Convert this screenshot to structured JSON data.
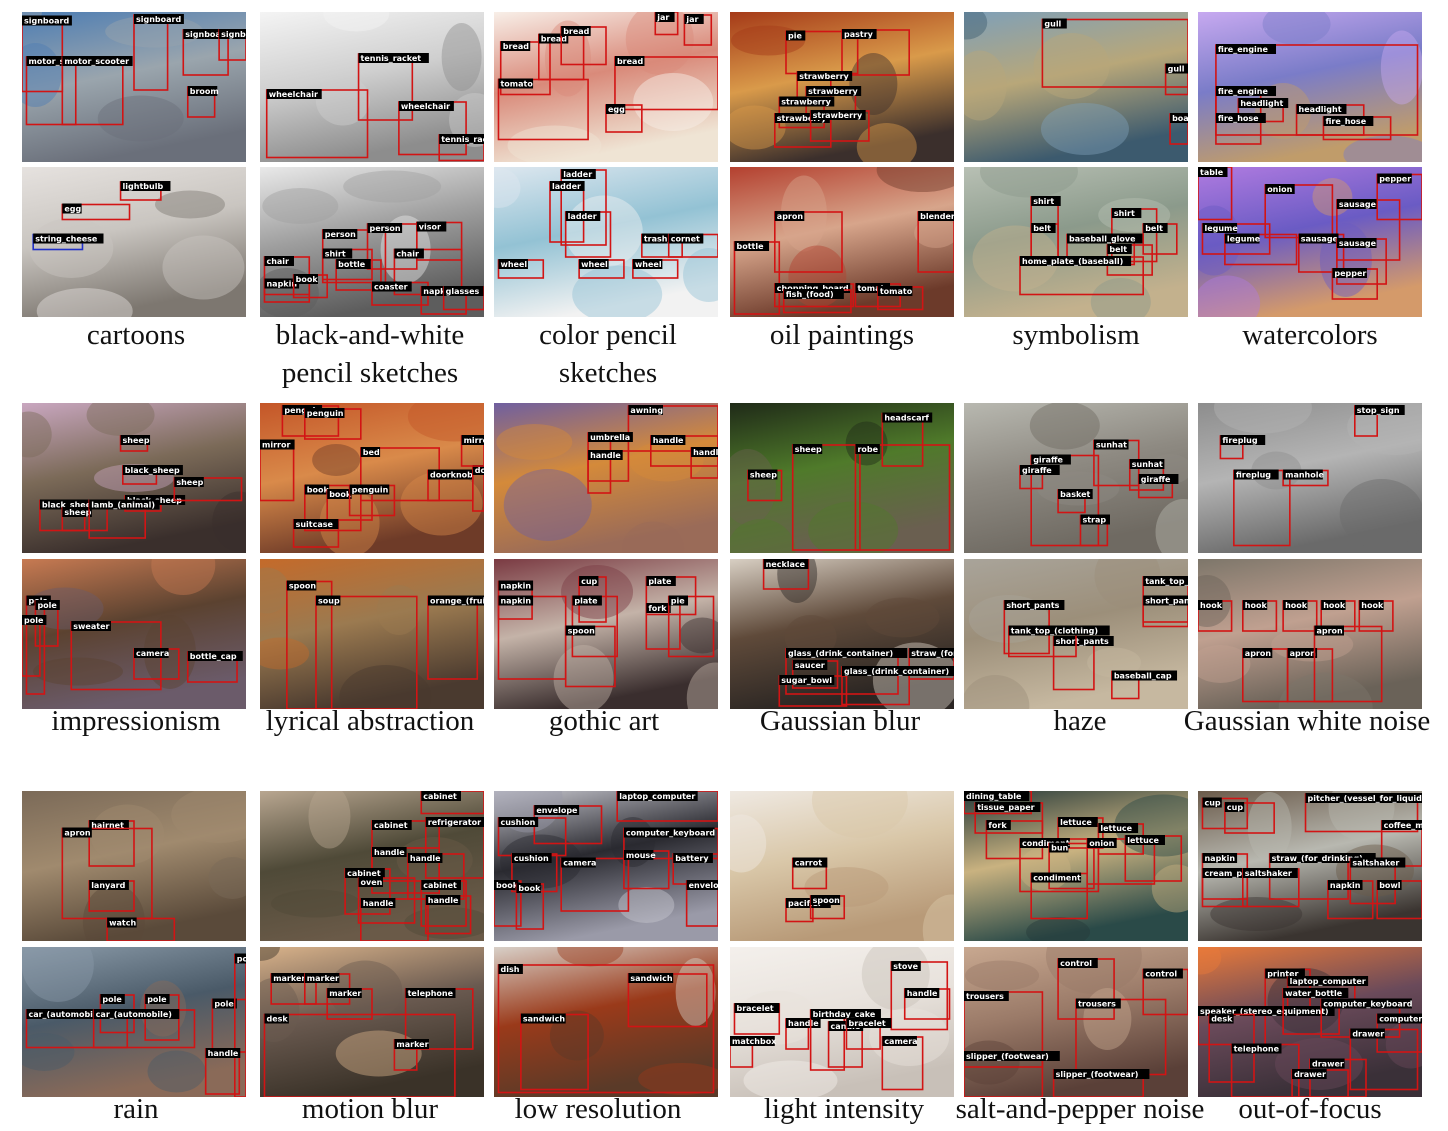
{
  "accent": "#d21414",
  "captions": {
    "r1": [
      "cartoons",
      "black-and-white pencil sketches",
      "color pencil sketches",
      "oil paintings",
      "symbolism",
      "watercolors"
    ],
    "r2": [
      "impressionism",
      "lyrical abstraction",
      "gothic art",
      "Gaussian blur",
      "haze",
      "Gaussian white noise"
    ],
    "r3": [
      "rain",
      "motion blur",
      "low resolution",
      "light intensity",
      "salt-and-pepper noise",
      "out-of-focus"
    ]
  },
  "caption_lines": {
    "bw1": "black-and-white",
    "bw2": "pencil sketches",
    "cp1": "color pencil",
    "cp2": "sketches"
  },
  "tiles": [
    {
      "id": "t0",
      "labels": [
        "signboard",
        "signboard",
        "signboard",
        "motor_scooter",
        "motor_scooter",
        "broom",
        "signboard"
      ]
    },
    {
      "id": "t1",
      "labels": [
        "tennis_racket",
        "wheelchair",
        "wheelchair",
        "tennis_racket"
      ]
    },
    {
      "id": "t2",
      "labels": [
        "bread",
        "bread",
        "bread",
        "jar",
        "jar",
        "tomato",
        "bread",
        "egg"
      ]
    },
    {
      "id": "t3",
      "labels": [
        "pie",
        "pastry",
        "strawberry",
        "strawberry",
        "strawberry",
        "strawberry",
        "strawberry"
      ]
    },
    {
      "id": "t4",
      "labels": [
        "gull",
        "gull",
        "boat"
      ]
    },
    {
      "id": "t5",
      "labels": [
        "fire_engine",
        "fire_engine",
        "headlight",
        "fire_hose",
        "headlight",
        "fire_hose"
      ]
    },
    {
      "id": "t6",
      "labels": [
        "lightbulb",
        "egg",
        "string_cheese"
      ]
    },
    {
      "id": "t7",
      "labels": [
        "person",
        "person",
        "visor",
        "shirt",
        "bottle",
        "chair",
        "chair",
        "napkin",
        "coaster",
        "napkin",
        "glasses",
        "book"
      ]
    },
    {
      "id": "t8",
      "labels": [
        "ladder",
        "ladder",
        "ladder",
        "trash_can",
        "cornet",
        "wheel",
        "wheel",
        "wheel"
      ]
    },
    {
      "id": "t9",
      "labels": [
        "apron",
        "blender",
        "bottle",
        "chopping_board",
        "fish_(food)",
        "tomato",
        "tomato"
      ]
    },
    {
      "id": "t10",
      "labels": [
        "shirt",
        "belt",
        "shirt",
        "belt",
        "baseball_glove",
        "belt",
        "home_plate_(baseball)"
      ]
    },
    {
      "id": "t11",
      "labels": [
        "table",
        "pepper",
        "onion",
        "sausage",
        "legume",
        "legume",
        "sausage",
        "sausage",
        "pepper"
      ]
    },
    {
      "id": "t12",
      "labels": [
        "sheep",
        "black_sheep",
        "black_sheep",
        "sheep",
        "black_sheep",
        "sheep",
        "lamb_(animal)"
      ]
    },
    {
      "id": "t13",
      "labels": [
        "penguin",
        "penguin",
        "mirror",
        "bed",
        "doorknob",
        "doorknob",
        "book",
        "book",
        "penguin",
        "suitcase",
        "mirror"
      ]
    },
    {
      "id": "t14",
      "labels": [
        "awning",
        "umbrella",
        "handle",
        "handle",
        "handle"
      ]
    },
    {
      "id": "t15",
      "labels": [
        "headscarf",
        "sheep",
        "robe",
        "sheep"
      ]
    },
    {
      "id": "t16",
      "labels": [
        "giraffe",
        "sunhat",
        "giraffe",
        "sunhat",
        "giraffe",
        "basket",
        "strap"
      ]
    },
    {
      "id": "t17",
      "labels": [
        "stop_sign",
        "fireplug",
        "fireplug",
        "manhole"
      ]
    },
    {
      "id": "t18",
      "labels": [
        "pole",
        "pole",
        "pole",
        "sweater",
        "camera",
        "bottle_cap"
      ]
    },
    {
      "id": "t19",
      "labels": [
        "spoon",
        "soup",
        "orange_(fruit)"
      ]
    },
    {
      "id": "t20",
      "labels": [
        "napkin",
        "cup",
        "plate",
        "plate",
        "fork",
        "pie",
        "napkin",
        "spoon"
      ]
    },
    {
      "id": "t21",
      "labels": [
        "necklace",
        "glass_(drink_container)",
        "saucer",
        "straw_(for_drinking)",
        "sugar_bowl",
        "glass_(drink_container)"
      ]
    },
    {
      "id": "t22",
      "labels": [
        "tank_top_(clothing)",
        "short_pants",
        "short_pants",
        "tank_top_(clothing)",
        "short_pants",
        "baseball_cap"
      ]
    },
    {
      "id": "t23",
      "labels": [
        "hook",
        "hook",
        "hook",
        "hook",
        "hook",
        "apron",
        "apron",
        "apron"
      ]
    },
    {
      "id": "t24",
      "labels": [
        "hairnet",
        "apron",
        "lanyard",
        "watch"
      ]
    },
    {
      "id": "t25",
      "labels": [
        "cabinet",
        "cabinet",
        "refrigerator",
        "handle",
        "handle",
        "cabinet",
        "oven",
        "cabinet",
        "handle",
        "handle"
      ]
    },
    {
      "id": "t26",
      "labels": [
        "envelope",
        "laptop_computer",
        "cushion",
        "computer_keyboard",
        "cushion",
        "camera",
        "mouse",
        "battery",
        "book",
        "book",
        "envelope"
      ]
    },
    {
      "id": "t27",
      "labels": [
        "carrot",
        "pacifier",
        "spoon"
      ]
    },
    {
      "id": "t28",
      "labels": [
        "dining_table",
        "tissue_paper",
        "lettuce",
        "fork",
        "lettuce",
        "condiment",
        "bun",
        "onion",
        "lettuce",
        "condiment"
      ]
    },
    {
      "id": "t29",
      "labels": [
        "cup",
        "cup",
        "pitcher_(vessel_for_liquid)",
        "coffee_maker",
        "napkin",
        "straw_(for_drinking)",
        "cream_pitcher",
        "saltshaker",
        "saltshaker",
        "napkin",
        "bowl"
      ]
    },
    {
      "id": "t30",
      "labels": [
        "pole",
        "pole",
        "pole",
        "car_(automobile)",
        "car_(automobile)",
        "pole",
        "handle"
      ]
    },
    {
      "id": "t31",
      "labels": [
        "marker",
        "marker",
        "marker",
        "telephone",
        "desk",
        "marker"
      ]
    },
    {
      "id": "t32",
      "labels": [
        "dish",
        "sandwich",
        "sandwich"
      ]
    },
    {
      "id": "t33",
      "labels": [
        "stove",
        "bracelet",
        "handle",
        "handle",
        "birthday_cake",
        "candle",
        "bracelet",
        "matchbox",
        "camera"
      ]
    },
    {
      "id": "t34",
      "labels": [
        "control",
        "control",
        "trousers",
        "trousers",
        "slipper_(footwear)",
        "slipper_(footwear)"
      ]
    },
    {
      "id": "t35",
      "labels": [
        "printer",
        "laptop_computer",
        "speaker_(stereo_equipment)",
        "water_bottle",
        "computer_keyboard",
        "desk",
        "computer_keyboard",
        "drawer",
        "telephone",
        "drawer",
        "drawer"
      ]
    }
  ]
}
